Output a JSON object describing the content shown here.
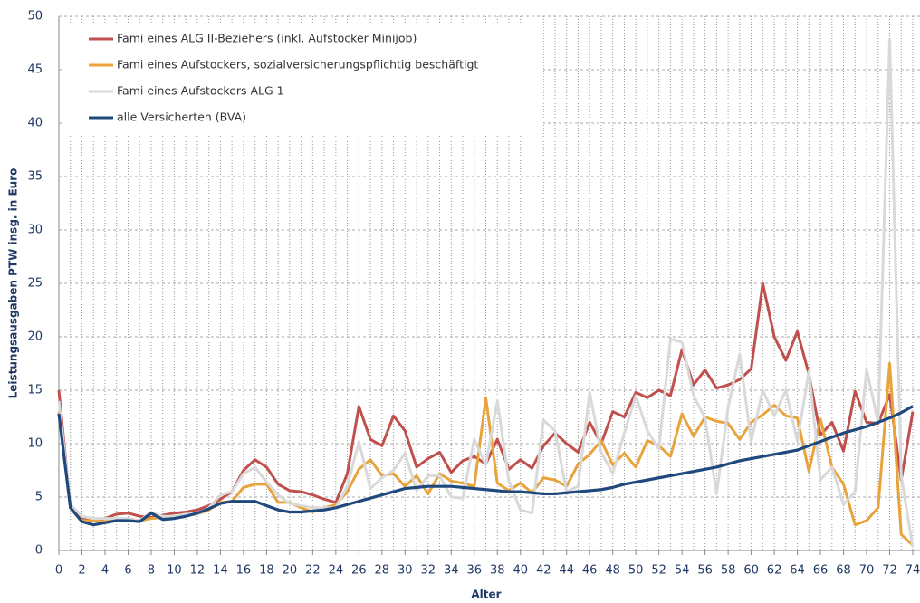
{
  "chart_data": {
    "type": "line",
    "x_label": "Alter",
    "y_label": "Leistungsausgaben PTW insg. in Euro",
    "x": [
      0,
      1,
      2,
      3,
      4,
      5,
      6,
      7,
      8,
      9,
      10,
      11,
      12,
      13,
      14,
      15,
      16,
      17,
      18,
      19,
      20,
      21,
      22,
      23,
      24,
      25,
      26,
      27,
      28,
      29,
      30,
      31,
      32,
      33,
      34,
      35,
      36,
      37,
      38,
      39,
      40,
      41,
      42,
      43,
      44,
      45,
      46,
      47,
      48,
      49,
      50,
      51,
      52,
      53,
      54,
      55,
      56,
      57,
      58,
      59,
      60,
      61,
      62,
      63,
      64,
      65,
      66,
      67,
      68,
      69,
      70,
      71,
      72,
      73,
      74
    ],
    "xlim": [
      0,
      74
    ],
    "xticks": [
      0,
      2,
      4,
      6,
      8,
      10,
      12,
      14,
      16,
      18,
      20,
      22,
      24,
      26,
      28,
      30,
      32,
      34,
      36,
      38,
      40,
      42,
      44,
      46,
      48,
      50,
      52,
      54,
      56,
      58,
      60,
      62,
      64,
      66,
      68,
      70,
      72,
      74
    ],
    "ylim": [
      0,
      50
    ],
    "yticks": [
      0,
      5,
      10,
      15,
      20,
      25,
      30,
      35,
      40,
      45,
      50
    ],
    "grid": true,
    "legend": "upper left",
    "series": [
      {
        "name": "Fami eines ALG II-Beziehers (inkl. Aufstocker Minijob)",
        "color": "#c0504d",
        "values": [
          15,
          4,
          3,
          2.8,
          3,
          3.4,
          3.5,
          3.2,
          3.1,
          3.3,
          3.5,
          3.6,
          3.8,
          4.2,
          4.8,
          5.5,
          7.5,
          8.5,
          7.8,
          6.2,
          5.6,
          5.5,
          5.2,
          4.8,
          4.5,
          7.2,
          13.5,
          10.4,
          9.8,
          12.6,
          11.2,
          7.8,
          8.6,
          9.2,
          7.3,
          8.4,
          8.8,
          8.1,
          10.4,
          7.6,
          8.5,
          7.7,
          9.8,
          11,
          10,
          9.2,
          12,
          10,
          13,
          12.5,
          14.8,
          14.3,
          15,
          14.5,
          18.8,
          15.5,
          16.9,
          15.2,
          15.5,
          16,
          17,
          25,
          20,
          17.8,
          20.5,
          16.5,
          10.8,
          12,
          9.3,
          14.9,
          12,
          11.9,
          14.6,
          6.6,
          13
        ]
      },
      {
        "name": "Fami eines Aufstockers, sozialversicherungspflichtig beschäftigt",
        "color": "#e8a33c",
        "values": [
          13,
          4,
          2.8,
          2.8,
          2.7,
          2.9,
          3,
          2.8,
          3,
          3.1,
          3.2,
          3.3,
          3.4,
          3.8,
          4.5,
          4.6,
          5.9,
          6.2,
          6.2,
          4.5,
          4.5,
          4,
          3.6,
          4,
          4.3,
          5.5,
          7.6,
          8.5,
          7,
          7.2,
          6,
          7,
          5.3,
          7.2,
          6.5,
          6.3,
          6,
          14.3,
          6.3,
          5.6,
          6.3,
          5.4,
          6.8,
          6.6,
          6,
          8.1,
          9,
          10.3,
          8,
          9.1,
          7.8,
          10.3,
          9.8,
          8.8,
          12.8,
          10.7,
          12.5,
          12.1,
          11.9,
          10.4,
          12,
          12.7,
          13.6,
          12.6,
          12.4,
          7.4,
          12.3,
          7.8,
          6.2,
          2.4,
          2.8,
          4,
          17.5,
          1.5,
          0.5
        ]
      },
      {
        "name": "Fami eines Aufstockers ALG 1",
        "color": "#d9d9d9",
        "values": [
          14,
          4.3,
          3.2,
          3,
          3,
          3,
          3,
          2.8,
          3.6,
          3.2,
          3.2,
          3.4,
          3.4,
          4,
          5.2,
          5.5,
          7.2,
          7.8,
          6.4,
          5.2,
          4.4,
          4.2,
          4,
          4,
          4,
          6,
          10.2,
          5.8,
          6.8,
          7.5,
          9.1,
          5.6,
          7,
          7,
          5,
          4.9,
          10.4,
          8,
          14,
          6.5,
          3.8,
          3.5,
          12.2,
          11.2,
          5.5,
          6,
          14.8,
          9.2,
          7.2,
          11,
          14.5,
          11.2,
          9.5,
          19.8,
          19.5,
          14.5,
          12.4,
          5.3,
          13.4,
          18.4,
          10.2,
          15,
          12.6,
          15,
          10.2,
          16.8,
          6.6,
          7.8,
          4.3,
          5.5,
          17,
          12,
          47.8,
          7,
          0.3
        ]
      },
      {
        "name": "alle Versicherten (BVA)",
        "color": "#1f497d",
        "values": [
          12.8,
          4,
          2.7,
          2.4,
          2.6,
          2.8,
          2.8,
          2.7,
          3.5,
          2.9,
          3,
          3.2,
          3.5,
          3.9,
          4.4,
          4.6,
          4.6,
          4.6,
          4.2,
          3.8,
          3.6,
          3.6,
          3.7,
          3.8,
          4,
          4.3,
          4.6,
          4.9,
          5.2,
          5.5,
          5.8,
          5.9,
          6,
          6,
          6,
          5.9,
          5.8,
          5.7,
          5.6,
          5.5,
          5.5,
          5.4,
          5.3,
          5.3,
          5.4,
          5.5,
          5.6,
          5.7,
          5.9,
          6.2,
          6.4,
          6.6,
          6.8,
          7,
          7.2,
          7.4,
          7.6,
          7.8,
          8.1,
          8.4,
          8.6,
          8.8,
          9,
          9.2,
          9.4,
          9.8,
          10.2,
          10.6,
          11,
          11.3,
          11.6,
          12,
          12.4,
          12.9,
          13.5
        ]
      }
    ]
  }
}
